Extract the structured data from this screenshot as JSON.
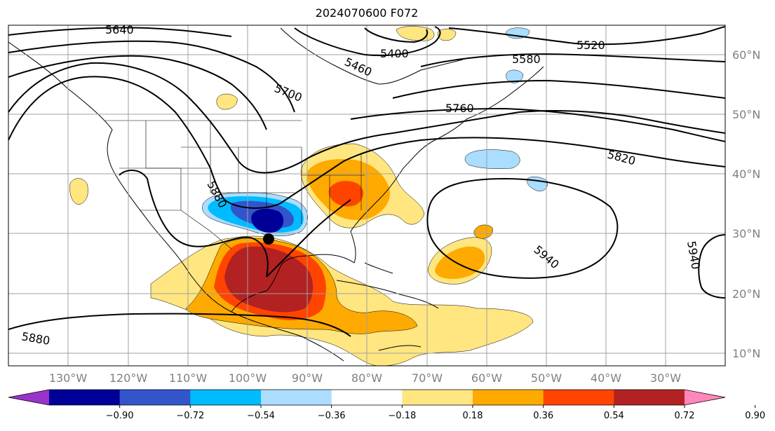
{
  "title": "2024070600 F072",
  "map": {
    "longitude_labels": [
      "130°W",
      "120°W",
      "110°W",
      "100°W",
      "90°W",
      "80°W",
      "70°W",
      "60°W",
      "50°W",
      "40°W",
      "30°W"
    ],
    "latitude_labels": [
      "60°N",
      "50°N",
      "40°N",
      "30°N",
      "20°N",
      "10°N"
    ],
    "contour_labels": [
      "5640",
      "5460",
      "5400",
      "5520",
      "5580",
      "5700",
      "5760",
      "5820",
      "5880",
      "5940",
      "5940",
      "5880"
    ],
    "storm_marker": {
      "lon": -95.8,
      "lat": 29.3
    }
  },
  "colorbar": {
    "colors": [
      "#9933cc",
      "#000099",
      "#3355cc",
      "#00bbff",
      "#aaddff",
      "#ffffff",
      "#ffe680",
      "#ffaa00",
      "#ff4400",
      "#b22222",
      "#ff88bb"
    ],
    "tick_labels": [
      "−0.90",
      "−0.72",
      "−0.54",
      "−0.36",
      "−0.18",
      "0.18",
      "0.36",
      "0.54",
      "0.72",
      "0.90"
    ]
  }
}
